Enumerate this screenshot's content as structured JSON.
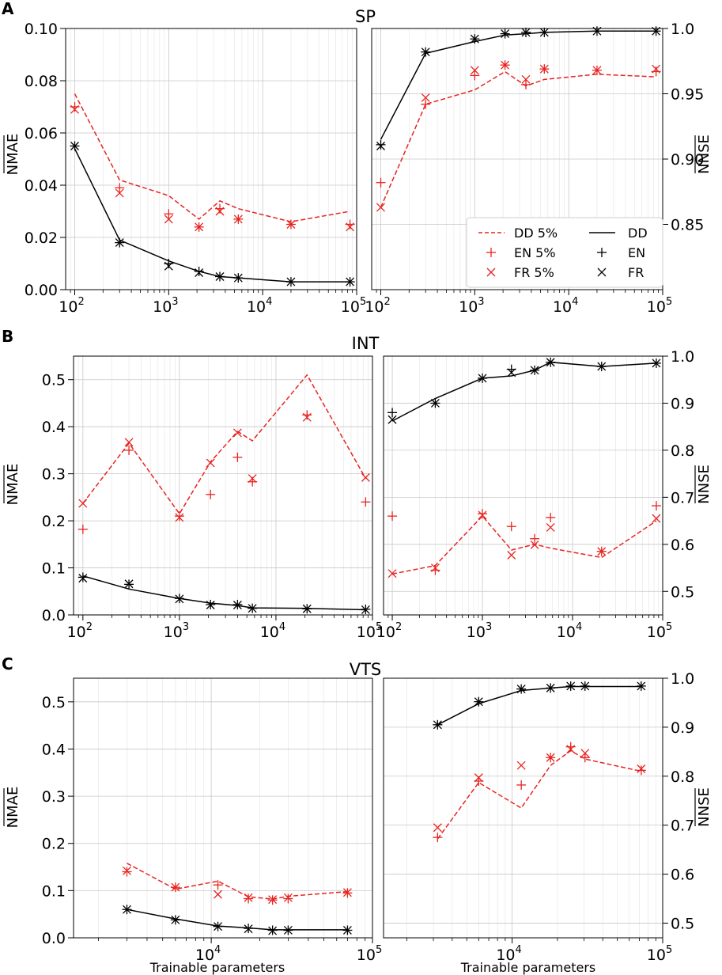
{
  "figure": {
    "legend": {
      "entries": [
        {
          "label": "DD 5%",
          "kind": "dashed-line",
          "color": "#e8231f"
        },
        {
          "label": "EN 5%",
          "kind": "plus",
          "color": "#e8231f"
        },
        {
          "label": "FR 5%",
          "kind": "cross",
          "color": "#e8231f"
        },
        {
          "label": "DD",
          "kind": "solid-line",
          "color": "#000000"
        },
        {
          "label": "EN",
          "kind": "plus",
          "color": "#000000"
        },
        {
          "label": "FR",
          "kind": "cross",
          "color": "#000000"
        }
      ]
    }
  },
  "chart_data": [
    {
      "type": "line",
      "panel": "A",
      "title": "SP",
      "side": "left",
      "xscale": "log",
      "xlim": [
        80,
        100000
      ],
      "xticks": [
        100,
        1000,
        10000,
        100000
      ],
      "ylabel": "NMAE",
      "ylim": [
        0,
        0.1
      ],
      "yticks": [
        0,
        0.02,
        0.04,
        0.06,
        0.08,
        0.1
      ],
      "ytick_labels": [
        "0.00",
        "0.02",
        "0.04",
        "0.06",
        "0.08",
        "0.10"
      ],
      "xlabel": "",
      "x": [
        100,
        300,
        1000,
        2100,
        3500,
        5500,
        20000,
        85000
      ],
      "series": [
        {
          "name": "DD 5%",
          "style": "dashed",
          "color": "#e8231f",
          "values": [
            0.075,
            0.042,
            0.036,
            0.027,
            0.034,
            0.031,
            0.026,
            0.03
          ]
        },
        {
          "name": "EN 5%",
          "style": "plus",
          "color": "#e8231f",
          "values": [
            0.07,
            0.039,
            0.029,
            0.024,
            0.031,
            0.027,
            0.025,
            0.025
          ]
        },
        {
          "name": "FR 5%",
          "style": "cross",
          "color": "#e8231f",
          "values": [
            0.069,
            0.037,
            0.027,
            0.024,
            0.03,
            0.027,
            0.025,
            0.024
          ]
        },
        {
          "name": "DD",
          "style": "solid",
          "color": "#000000",
          "values": [
            0.054,
            0.019,
            0.011,
            0.007,
            0.005,
            0.0045,
            0.003,
            0.003
          ]
        },
        {
          "name": "EN",
          "style": "plus",
          "color": "#000000",
          "values": [
            0.055,
            0.018,
            0.01,
            0.007,
            0.005,
            0.0045,
            0.003,
            0.003
          ]
        },
        {
          "name": "FR",
          "style": "cross",
          "color": "#000000",
          "values": [
            0.055,
            0.018,
            0.009,
            0.0065,
            0.005,
            0.0045,
            0.003,
            0.003
          ]
        }
      ]
    },
    {
      "type": "line",
      "panel": "A",
      "title": "SP",
      "side": "right",
      "xscale": "log",
      "xlim": [
        80,
        100000
      ],
      "xticks": [
        100,
        1000,
        10000,
        100000
      ],
      "ylabel": "NNSE",
      "ylim": [
        0.8,
        1.0
      ],
      "yticks": [
        0.85,
        0.9,
        0.95,
        1.0
      ],
      "ytick_labels": [
        "0.85",
        "0.90",
        "0.95",
        "1.0"
      ],
      "xlabel": "",
      "legend": true,
      "x": [
        100,
        300,
        1000,
        2100,
        3500,
        5500,
        20000,
        85000
      ],
      "series": [
        {
          "name": "DD 5%",
          "style": "dashed",
          "color": "#e8231f",
          "values": [
            0.863,
            0.942,
            0.953,
            0.967,
            0.956,
            0.961,
            0.965,
            0.963
          ]
        },
        {
          "name": "EN 5%",
          "style": "plus",
          "color": "#e8231f",
          "values": [
            0.882,
            0.942,
            0.964,
            0.972,
            0.957,
            0.969,
            0.968,
            0.967
          ]
        },
        {
          "name": "FR 5%",
          "style": "cross",
          "color": "#e8231f",
          "values": [
            0.863,
            0.947,
            0.968,
            0.972,
            0.961,
            0.969,
            0.968,
            0.969
          ]
        },
        {
          "name": "DD",
          "style": "solid",
          "color": "#000000",
          "values": [
            0.915,
            0.981,
            0.99,
            0.995,
            0.996,
            0.997,
            0.998,
            0.998
          ]
        },
        {
          "name": "EN",
          "style": "plus",
          "color": "#000000",
          "values": [
            0.911,
            0.982,
            0.992,
            0.996,
            0.997,
            0.997,
            0.998,
            0.998
          ]
        },
        {
          "name": "FR",
          "style": "cross",
          "color": "#000000",
          "values": [
            0.91,
            0.982,
            0.992,
            0.996,
            0.997,
            0.997,
            0.998,
            0.998
          ]
        }
      ]
    },
    {
      "type": "line",
      "panel": "B",
      "title": "INT",
      "side": "left",
      "xscale": "log",
      "xlim": [
        80,
        100000
      ],
      "xticks": [
        100,
        1000,
        10000,
        100000
      ],
      "ylabel": "NMAE",
      "ylim": [
        0,
        0.55
      ],
      "yticks": [
        0,
        0.1,
        0.2,
        0.3,
        0.4,
        0.5
      ],
      "ytick_labels": [
        "0.0",
        "0.1",
        "0.2",
        "0.3",
        "0.4",
        "0.5"
      ],
      "xlabel": "",
      "x": [
        100,
        300,
        1000,
        2100,
        4000,
        5700,
        21000,
        85000
      ],
      "series": [
        {
          "name": "DD 5%",
          "style": "dashed",
          "color": "#e8231f",
          "values": [
            0.237,
            0.365,
            0.215,
            0.325,
            0.39,
            0.37,
            0.51,
            0.29
          ]
        },
        {
          "name": "EN 5%",
          "style": "plus",
          "color": "#e8231f",
          "values": [
            0.182,
            0.35,
            0.21,
            0.256,
            0.335,
            0.283,
            0.425,
            0.24
          ]
        },
        {
          "name": "FR 5%",
          "style": "cross",
          "color": "#e8231f",
          "values": [
            0.237,
            0.367,
            0.207,
            0.323,
            0.387,
            0.29,
            0.42,
            0.292
          ]
        },
        {
          "name": "DD",
          "style": "solid",
          "color": "#000000",
          "values": [
            0.083,
            0.055,
            0.035,
            0.025,
            0.02,
            0.015,
            0.014,
            0.011
          ]
        },
        {
          "name": "EN",
          "style": "plus",
          "color": "#000000",
          "values": [
            0.08,
            0.065,
            0.035,
            0.022,
            0.022,
            0.014,
            0.013,
            0.012
          ]
        },
        {
          "name": "FR",
          "style": "cross",
          "color": "#000000",
          "values": [
            0.078,
            0.066,
            0.034,
            0.021,
            0.021,
            0.014,
            0.013,
            0.011
          ]
        }
      ]
    },
    {
      "type": "line",
      "panel": "B",
      "title": "INT",
      "side": "right",
      "xscale": "log",
      "xlim": [
        80,
        100000
      ],
      "xticks": [
        100,
        1000,
        10000,
        100000
      ],
      "ylabel": "NNSE",
      "ylim": [
        0.45,
        1.0
      ],
      "yticks": [
        0.5,
        0.6,
        0.7,
        0.8,
        0.9,
        1.0
      ],
      "ytick_labels": [
        "0.5",
        "0.6",
        "0.7",
        "0.8",
        "0.9",
        "1.0"
      ],
      "xlabel": "",
      "x": [
        100,
        300,
        1000,
        2100,
        3800,
        5700,
        21000,
        85000
      ],
      "series": [
        {
          "name": "DD 5%",
          "style": "dashed",
          "color": "#e8231f",
          "values": [
            0.537,
            0.555,
            0.66,
            0.588,
            0.6,
            0.592,
            0.572,
            0.65
          ]
        },
        {
          "name": "EN 5%",
          "style": "plus",
          "color": "#e8231f",
          "values": [
            0.66,
            0.545,
            0.665,
            0.638,
            0.612,
            0.657,
            0.585,
            0.682
          ]
        },
        {
          "name": "FR 5%",
          "style": "cross",
          "color": "#e8231f",
          "values": [
            0.538,
            0.55,
            0.662,
            0.577,
            0.599,
            0.636,
            0.585,
            0.655
          ]
        },
        {
          "name": "DD",
          "style": "solid",
          "color": "#000000",
          "values": [
            0.862,
            0.91,
            0.953,
            0.958,
            0.97,
            0.987,
            0.978,
            0.985
          ]
        },
        {
          "name": "EN",
          "style": "plus",
          "color": "#000000",
          "values": [
            0.88,
            0.9,
            0.953,
            0.972,
            0.97,
            0.987,
            0.978,
            0.985
          ]
        },
        {
          "name": "FR",
          "style": "cross",
          "color": "#000000",
          "values": [
            0.865,
            0.9,
            0.953,
            0.965,
            0.97,
            0.987,
            0.978,
            0.985
          ]
        }
      ]
    },
    {
      "type": "line",
      "panel": "C",
      "title": "VTS",
      "side": "left",
      "xscale": "log",
      "xlim": [
        1400,
        100000
      ],
      "xticks": [
        10000,
        100000
      ],
      "ylabel": "NMAE",
      "ylim": [
        0,
        0.55
      ],
      "yticks": [
        0,
        0.1,
        0.2,
        0.3,
        0.4,
        0.5
      ],
      "ytick_labels": [
        "0.0",
        "0.1",
        "0.2",
        "0.3",
        "0.4",
        "0.5"
      ],
      "xlabel": "Trainable parameters",
      "x": [
        3000,
        6000,
        11000,
        17000,
        24000,
        30000,
        70000
      ],
      "series": [
        {
          "name": "DD 5%",
          "style": "dashed",
          "color": "#e8231f",
          "values": [
            0.158,
            0.103,
            0.12,
            0.087,
            0.082,
            0.088,
            0.098
          ]
        },
        {
          "name": "EN 5%",
          "style": "plus",
          "color": "#e8231f",
          "values": [
            0.14,
            0.107,
            0.112,
            0.083,
            0.08,
            0.083,
            0.095
          ]
        },
        {
          "name": "FR 5%",
          "style": "cross",
          "color": "#e8231f",
          "values": [
            0.142,
            0.107,
            0.092,
            0.085,
            0.081,
            0.085,
            0.096
          ]
        },
        {
          "name": "DD",
          "style": "solid",
          "color": "#000000",
          "values": [
            0.06,
            0.04,
            0.025,
            0.021,
            0.017,
            0.017,
            0.017
          ]
        },
        {
          "name": "EN",
          "style": "plus",
          "color": "#000000",
          "values": [
            0.06,
            0.038,
            0.024,
            0.02,
            0.016,
            0.016,
            0.016
          ]
        },
        {
          "name": "FR",
          "style": "cross",
          "color": "#000000",
          "values": [
            0.06,
            0.038,
            0.024,
            0.019,
            0.015,
            0.016,
            0.016
          ]
        }
      ]
    },
    {
      "type": "line",
      "panel": "C",
      "title": "VTS",
      "side": "right",
      "xscale": "log",
      "xlim": [
        1400,
        100000
      ],
      "xticks": [
        10000,
        100000
      ],
      "ylabel": "NNSE",
      "ylim": [
        0.47,
        1.0
      ],
      "yticks": [
        0.5,
        0.6,
        0.7,
        0.8,
        0.9,
        1.0
      ],
      "ytick_labels": [
        "0.5",
        "0.6",
        "0.7",
        "0.8",
        "0.9",
        "1.0"
      ],
      "xlabel": "Trainable parameters",
      "x": [
        3200,
        6000,
        11500,
        18000,
        24500,
        30500,
        72000
      ],
      "series": [
        {
          "name": "DD 5%",
          "style": "dashed",
          "color": "#e8231f",
          "values": [
            0.672,
            0.787,
            0.735,
            0.822,
            0.852,
            0.835,
            0.81
          ]
        },
        {
          "name": "EN 5%",
          "style": "plus",
          "color": "#e8231f",
          "values": [
            0.675,
            0.79,
            0.782,
            0.838,
            0.86,
            0.838,
            0.812
          ]
        },
        {
          "name": "FR 5%",
          "style": "cross",
          "color": "#e8231f",
          "values": [
            0.695,
            0.797,
            0.822,
            0.838,
            0.855,
            0.847,
            0.815
          ]
        },
        {
          "name": "DD",
          "style": "solid",
          "color": "#000000",
          "values": [
            0.905,
            0.948,
            0.975,
            0.98,
            0.983,
            0.983,
            0.983
          ]
        },
        {
          "name": "EN",
          "style": "plus",
          "color": "#000000",
          "values": [
            0.905,
            0.952,
            0.978,
            0.98,
            0.984,
            0.984,
            0.984
          ]
        },
        {
          "name": "FR",
          "style": "cross",
          "color": "#000000",
          "values": [
            0.905,
            0.952,
            0.978,
            0.98,
            0.984,
            0.984,
            0.984
          ]
        }
      ]
    }
  ]
}
